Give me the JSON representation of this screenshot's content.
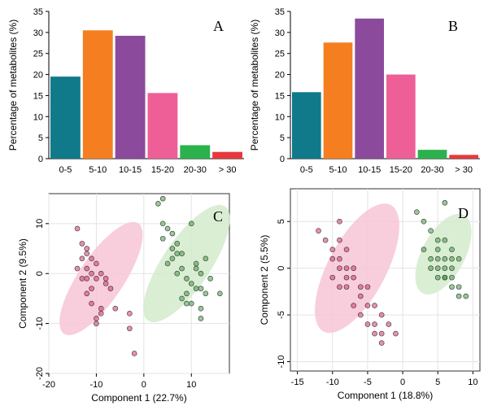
{
  "chart_data": [
    {
      "panel": "A",
      "type": "bar",
      "ylabel": "Percentage of metabolites (%)",
      "xlabel": "",
      "categories": [
        "0-5",
        "5-10",
        "10-15",
        "15-20",
        "20-30",
        "> 30"
      ],
      "values": [
        19.5,
        30.5,
        29.2,
        15.6,
        3.2,
        1.6
      ],
      "colors": [
        "#107a8b",
        "#f57f20",
        "#8b4a9c",
        "#ee5f97",
        "#2bb24c",
        "#e8383d"
      ],
      "ylim": [
        0,
        35
      ],
      "yticks": [
        0,
        5,
        10,
        15,
        20,
        25,
        30,
        35
      ],
      "grid": false
    },
    {
      "panel": "B",
      "type": "bar",
      "ylabel": "Percentage of metabolites (%)",
      "xlabel": "",
      "categories": [
        "0-5",
        "5-10",
        "10-15",
        "15-20",
        "20-30",
        "> 30"
      ],
      "values": [
        15.8,
        27.6,
        33.3,
        20.0,
        2.1,
        0.9
      ],
      "colors": [
        "#107a8b",
        "#f57f20",
        "#8b4a9c",
        "#ee5f97",
        "#2bb24c",
        "#e8383d"
      ],
      "ylim": [
        0,
        35
      ],
      "yticks": [
        0,
        5,
        10,
        15,
        20,
        25,
        30,
        35
      ],
      "grid": false
    },
    {
      "panel": "C",
      "type": "scatter",
      "xlabel": "Component 1 (22.7%)",
      "ylabel": "Component 2 (9.5%)",
      "xlim": [
        -20,
        18
      ],
      "ylim": [
        -20,
        16
      ],
      "xticks": [
        -20,
        -10,
        0,
        10
      ],
      "yticks": [
        -20,
        -10,
        0,
        10
      ],
      "grid": true,
      "series": [
        {
          "color": "#d6336c",
          "ellipse_color": "#f7c6d6",
          "ellipse": {
            "cx": -9,
            "cy": -1,
            "rx": 14,
            "ry": 4.5,
            "angle_deg": -56
          },
          "x": [
            -14,
            -13,
            -12,
            -13,
            -11,
            -12,
            -10,
            -13,
            -11,
            -9,
            -12,
            -10,
            -14,
            -11,
            -12,
            -8,
            -11,
            -9,
            -10,
            -7,
            -10,
            -9,
            -6,
            -8,
            -12,
            -3,
            -3,
            -2
          ],
          "y": [
            9,
            6,
            5,
            3,
            3,
            1,
            2,
            -1,
            0,
            0,
            -1,
            -1,
            1,
            -3,
            -4,
            -1,
            -6,
            -7,
            -9,
            -3,
            -10,
            -8,
            -7,
            -2,
            4,
            -8,
            -11,
            -16
          ]
        },
        {
          "color": "#3f9a3f",
          "ellipse_color": "#d3ebcd",
          "ellipse": {
            "cx": 9,
            "cy": 2,
            "rx": 14.5,
            "ry": 4.8,
            "angle_deg": -56
          },
          "x": [
            3,
            4,
            4,
            5,
            6,
            4,
            6,
            7,
            6,
            8,
            10,
            5,
            8,
            7,
            9,
            11,
            10,
            12,
            9,
            11,
            12,
            8,
            13,
            10,
            12,
            14,
            11,
            13,
            16,
            12,
            9,
            7
          ],
          "y": [
            14,
            15,
            10,
            9,
            8,
            7,
            5,
            6,
            3,
            4,
            10,
            2,
            1,
            0,
            -1,
            2,
            -2,
            0,
            -4,
            -3,
            -3,
            -5,
            -4,
            -6,
            -7,
            -1,
            1,
            3,
            -4,
            -9,
            -6,
            4
          ]
        }
      ]
    },
    {
      "panel": "D",
      "type": "scatter",
      "xlabel": "Component 1 (18.8%)",
      "ylabel": "Component 2 (5.5%)",
      "xlim": [
        -16,
        11
      ],
      "ylim": [
        -11,
        8.5
      ],
      "xticks": [
        -15,
        -10,
        -5,
        0,
        5,
        10
      ],
      "yticks": [
        -10,
        -5,
        0,
        5
      ],
      "grid": true,
      "series": [
        {
          "color": "#d6336c",
          "ellipse_color": "#f7c6d6",
          "ellipse": {
            "cx": -6.5,
            "cy": 0,
            "rx": 10.2,
            "ry": 3.1,
            "angle_deg": -62
          },
          "x": [
            -12,
            -11,
            -10,
            -9,
            -10,
            -9,
            -8,
            -8,
            -9,
            -7,
            -10,
            -8,
            -9,
            -7,
            -6,
            -8,
            -6,
            -5,
            -7,
            -5,
            -4,
            -6,
            -3,
            -4,
            -5,
            -3,
            -4,
            -2,
            -3,
            -1,
            -9
          ],
          "y": [
            4,
            3,
            2,
            3,
            1,
            1,
            2,
            0,
            0,
            0,
            -1,
            -1,
            -2,
            -1,
            -2,
            -2,
            -3,
            -2,
            -4,
            -4,
            -4,
            -5,
            -5,
            -6,
            -6,
            -7,
            -7,
            -6,
            -8,
            -7,
            5
          ]
        },
        {
          "color": "#3f9a3f",
          "ellipse_color": "#d3ebcd",
          "ellipse": {
            "cx": 5.8,
            "cy": 1.5,
            "rx": 6.3,
            "ry": 2.3,
            "angle_deg": -62
          },
          "x": [
            2,
            3,
            4,
            6,
            5,
            3,
            4,
            5,
            6,
            7,
            4,
            5,
            6,
            7,
            8,
            5,
            6,
            7,
            8,
            6,
            7,
            8,
            9,
            7,
            5,
            6
          ],
          "y": [
            6,
            5,
            4,
            7,
            3,
            2,
            1,
            2,
            1,
            2,
            0,
            0,
            -1,
            0,
            1,
            -1,
            -1,
            -2,
            -2,
            0,
            1,
            -3,
            -3,
            -1,
            1,
            3
          ]
        }
      ]
    }
  ]
}
